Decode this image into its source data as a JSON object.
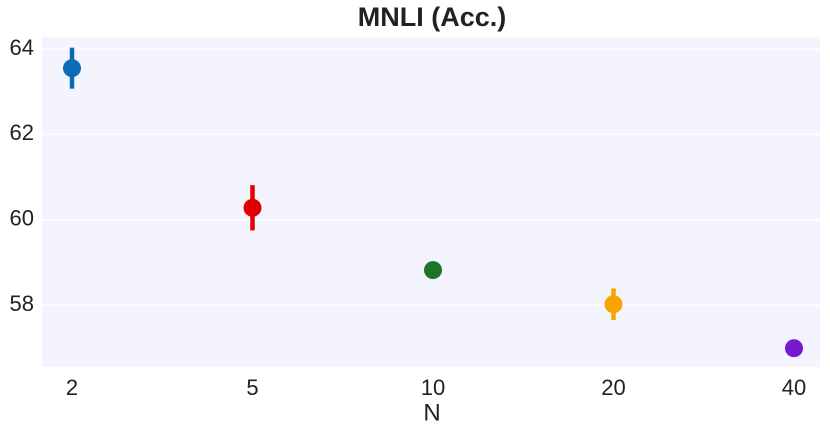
{
  "chart_data": {
    "type": "pointplot",
    "title": "MNLI (Acc.)",
    "x_label": "N",
    "categories": [
      "2",
      "5",
      "10",
      "20",
      "40"
    ],
    "values": [
      63.55,
      60.28,
      58.82,
      58.02,
      56.99
    ],
    "errors": [
      0.48,
      0.53,
      0.05,
      0.37,
      0.1
    ],
    "colors": [
      "#0a6cb5",
      "#e00000",
      "#1e7428",
      "#f7a400",
      "#7518d0"
    ],
    "ylim": [
      56.55,
      64.28
    ],
    "yticks": [
      58,
      60,
      62,
      64
    ],
    "grid": true,
    "background": "#f4f4ff"
  }
}
